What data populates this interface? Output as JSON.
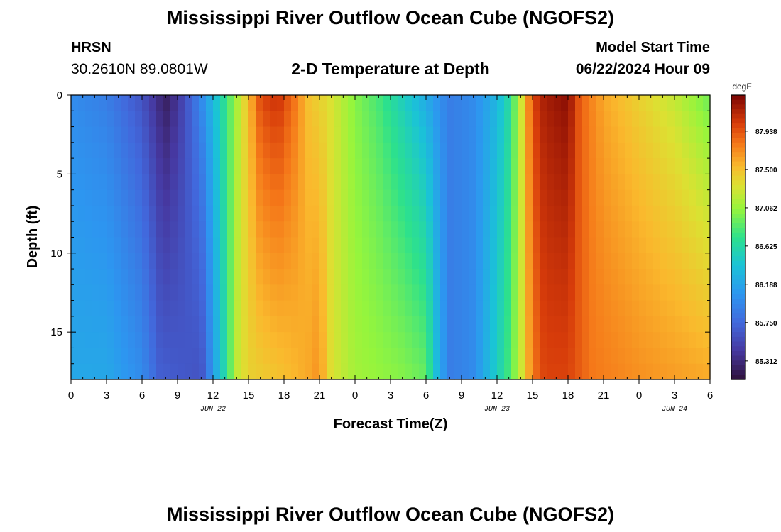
{
  "header": {
    "title": "Mississippi River Outflow Ocean Cube (NGOFS2)",
    "station": "HRSN",
    "coords": "30.2610N  89.0801W",
    "subtitle": "2-D Temperature at Depth",
    "model_label": "Model Start Time",
    "model_time": "06/22/2024 Hour 09"
  },
  "footer": {
    "title": "Mississippi River Outflow Ocean Cube (NGOFS2)"
  },
  "chart_data": {
    "type": "heatmap",
    "title": "2-D Temperature at Depth",
    "xlabel": "Forecast Time(Z)",
    "ylabel": "Depth (ft)",
    "x_range_hours": [
      0,
      54
    ],
    "y_range": [
      0,
      18
    ],
    "x_tick_labels": [
      "0",
      "3",
      "6",
      "9",
      "12",
      "15",
      "18",
      "21",
      "0",
      "3",
      "6",
      "9",
      "12",
      "15",
      "18",
      "21",
      "0",
      "3",
      "6"
    ],
    "y_ticks": [
      0,
      5,
      10,
      15
    ],
    "date_labels": [
      {
        "hour": 12,
        "label": "JUN 22"
      },
      {
        "hour": 36,
        "label": "JUN 23"
      },
      {
        "hour": 51,
        "label": "JUN 24"
      }
    ],
    "colorbar": {
      "unit": "degF",
      "ticks": [
        87.938,
        87.5,
        87.062,
        86.625,
        86.188,
        85.75,
        85.312
      ],
      "tick_labels": [
        "87.938",
        "87.500",
        "87.062",
        "86.625",
        "86.188",
        "85.750",
        "85.312"
      ],
      "range": [
        85.1,
        88.35
      ]
    },
    "surface_profile_degF": [
      [
        0,
        86.0
      ],
      [
        3,
        85.9
      ],
      [
        6,
        85.6
      ],
      [
        8,
        85.2
      ],
      [
        9,
        85.4
      ],
      [
        11,
        86.0
      ],
      [
        12.5,
        86.5
      ],
      [
        13.5,
        86.9
      ],
      [
        15,
        87.5
      ],
      [
        16,
        88.0
      ],
      [
        17.5,
        88.1
      ],
      [
        19,
        87.8
      ],
      [
        20,
        87.5
      ],
      [
        22,
        87.3
      ],
      [
        24,
        87.0
      ],
      [
        26,
        86.8
      ],
      [
        28,
        86.5
      ],
      [
        30,
        86.2
      ],
      [
        32,
        85.9
      ],
      [
        34,
        86.0
      ],
      [
        36,
        86.3
      ],
      [
        37,
        86.6
      ],
      [
        38,
        87.2
      ],
      [
        39,
        88.0
      ],
      [
        40,
        88.2
      ],
      [
        42,
        88.3
      ],
      [
        43,
        87.9
      ],
      [
        45,
        87.6
      ],
      [
        48,
        87.4
      ],
      [
        51,
        87.2
      ],
      [
        53,
        87.0
      ],
      [
        54,
        86.9
      ]
    ],
    "bottom_profile_degF": [
      [
        0,
        86.2
      ],
      [
        3,
        86.2
      ],
      [
        6,
        86.0
      ],
      [
        7.5,
        85.7
      ],
      [
        11,
        85.6
      ],
      [
        12,
        86.1
      ],
      [
        13,
        86.6
      ],
      [
        14,
        87.2
      ],
      [
        15,
        87.4
      ],
      [
        18,
        87.5
      ],
      [
        20,
        87.6
      ],
      [
        21,
        87.7
      ],
      [
        22,
        87.3
      ],
      [
        24,
        87.1
      ],
      [
        28,
        87.0
      ],
      [
        30,
        86.9
      ],
      [
        31,
        86.3
      ],
      [
        32,
        85.9
      ],
      [
        34,
        86.0
      ],
      [
        36,
        86.5
      ],
      [
        37,
        86.8
      ],
      [
        38,
        87.2
      ],
      [
        39,
        87.8
      ],
      [
        40,
        88.0
      ],
      [
        42,
        88.0
      ],
      [
        44,
        87.8
      ],
      [
        48,
        87.7
      ],
      [
        54,
        87.6
      ]
    ]
  }
}
